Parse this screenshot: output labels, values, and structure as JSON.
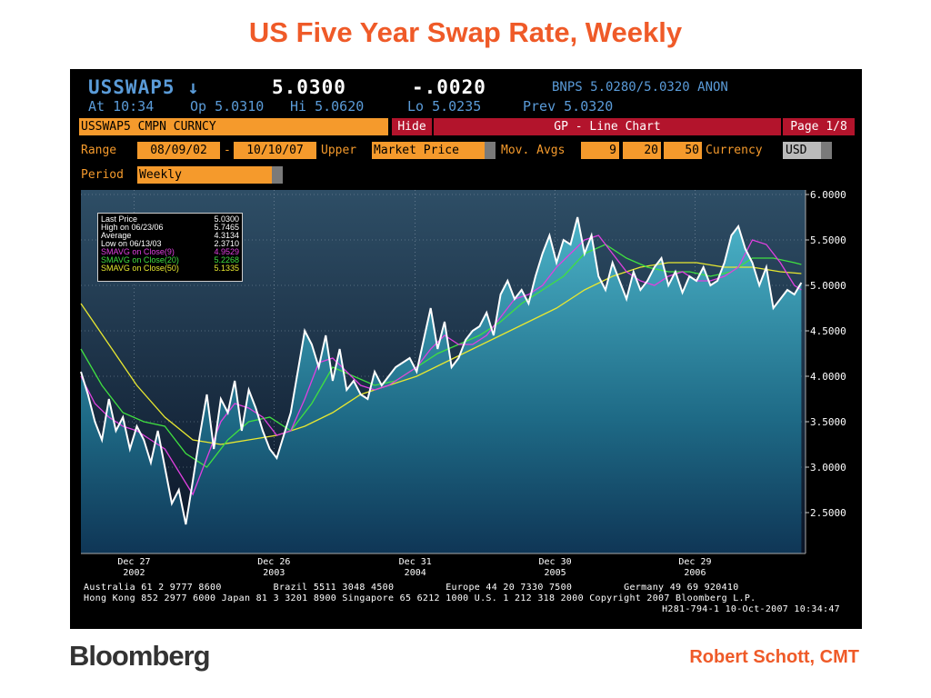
{
  "slide": {
    "title": "US Five Year Swap Rate, Weekly",
    "logo": "Bloomberg",
    "author": "Robert Schott, CMT"
  },
  "terminal": {
    "ticker": "USSWAP5 ↓",
    "last": "5.0300",
    "change": "-.0020",
    "bnps": "BNPS 5.0280/5.0320 ANON",
    "at": "At 10:34",
    "op": "Op 5.0310",
    "hi": "Hi 5.0620",
    "lo": "Lo 5.0235",
    "prev": "Prev 5.0320",
    "security": "USSWAP5 CMPN CURNCY",
    "hide_label": "Hide",
    "chart_mode": "GP - Line Chart",
    "page": "Page 1/8",
    "range_label": "Range",
    "range_from": "08/09/02",
    "range_sep": "-",
    "range_to": "10/10/07",
    "upper_label": "Upper",
    "upper_value": "Market Price",
    "mov_avgs_label": "Mov. Avgs",
    "ma1": "9",
    "ma2": "20",
    "ma3": "50",
    "currency_label": "Currency",
    "currency_value": "USD",
    "period_label": "Period",
    "period_value": "Weekly"
  },
  "legend": [
    {
      "key": "Last Price",
      "value": "5.0300",
      "color": "#ffffff"
    },
    {
      "key": "High on  06/23/06",
      "value": "5.7465",
      "color": "#ffffff"
    },
    {
      "key": "Average",
      "value": "4.3134",
      "color": "#ffffff"
    },
    {
      "key": "Low on  06/13/03",
      "value": "2.3710",
      "color": "#ffffff"
    },
    {
      "key": "SMAVG on Close(9)",
      "value": "4.9529",
      "color": "#e040e0"
    },
    {
      "key": "SMAVG on Close(20)",
      "value": "5.2268",
      "color": "#40e040"
    },
    {
      "key": "SMAVG on Close(50)",
      "value": "5.1335",
      "color": "#e8e830"
    }
  ],
  "footer": {
    "line1": "Australia 61 2 9777 8600         Brazil 5511 3048 4500         Europe 44 20 7330 7500         Germany 49 69 920410",
    "line2": "Hong Kong 852 2977 6000 Japan 81 3 3201 8900 Singapore 65 6212 1000 U.S. 1 212 318 2000 Copyright 2007 Bloomberg L.P.",
    "line3": "H281-794-1 10-Oct-2007 10:34:47"
  },
  "chart_data": {
    "type": "line",
    "ylim": [
      2.05,
      6.05
    ],
    "yticks": [
      "6.0000",
      "5.5000",
      "5.0000",
      "4.5000",
      "4.0000",
      "3.5000",
      "3.0000",
      "2.5000"
    ],
    "ytick_values": [
      6.0,
      5.5,
      5.0,
      4.5,
      4.0,
      3.5,
      3.0,
      2.5
    ],
    "xticks": [
      {
        "day": "Dec 27",
        "year": "2002",
        "t": 2002.98
      },
      {
        "day": "Dec 26",
        "year": "2003",
        "t": 2003.98
      },
      {
        "day": "Dec 31",
        "year": "2004",
        "t": 2004.99
      },
      {
        "day": "Dec 30",
        "year": "2005",
        "t": 2005.99
      },
      {
        "day": "Dec 29",
        "year": "2006",
        "t": 2006.99
      }
    ],
    "xlim": [
      2002.6,
      2007.78
    ],
    "colors": {
      "price": "#ffffff",
      "ma9": "#e040e0",
      "ma20": "#40e040",
      "ma50": "#e8e830"
    },
    "price": {
      "t": [
        2002.6,
        2002.65,
        2002.7,
        2002.75,
        2002.8,
        2002.85,
        2002.9,
        2002.95,
        2003.0,
        2003.05,
        2003.1,
        2003.15,
        2003.2,
        2003.25,
        2003.3,
        2003.35,
        2003.4,
        2003.45,
        2003.5,
        2003.55,
        2003.6,
        2003.65,
        2003.7,
        2003.75,
        2003.8,
        2003.85,
        2003.9,
        2003.95,
        2004.0,
        2004.05,
        2004.1,
        2004.15,
        2004.2,
        2004.25,
        2004.3,
        2004.35,
        2004.4,
        2004.45,
        2004.5,
        2004.55,
        2004.6,
        2004.65,
        2004.7,
        2004.75,
        2004.8,
        2004.85,
        2004.9,
        2004.95,
        2005.0,
        2005.05,
        2005.1,
        2005.15,
        2005.2,
        2005.25,
        2005.3,
        2005.35,
        2005.4,
        2005.45,
        2005.5,
        2005.55,
        2005.6,
        2005.65,
        2005.7,
        2005.75,
        2005.8,
        2005.85,
        2005.9,
        2005.95,
        2006.0,
        2006.05,
        2006.1,
        2006.15,
        2006.2,
        2006.25,
        2006.3,
        2006.35,
        2006.4,
        2006.45,
        2006.5,
        2006.55,
        2006.6,
        2006.65,
        2006.7,
        2006.75,
        2006.8,
        2006.85,
        2006.9,
        2006.95,
        2007.0,
        2007.05,
        2007.1,
        2007.15,
        2007.2,
        2007.25,
        2007.3,
        2007.35,
        2007.4,
        2007.45,
        2007.5,
        2007.55,
        2007.6,
        2007.65,
        2007.7,
        2007.75
      ],
      "v": [
        4.05,
        3.8,
        3.5,
        3.3,
        3.75,
        3.4,
        3.55,
        3.2,
        3.45,
        3.3,
        3.05,
        3.4,
        3.0,
        2.6,
        2.75,
        2.37,
        2.85,
        3.35,
        3.8,
        3.2,
        3.75,
        3.6,
        3.95,
        3.4,
        3.85,
        3.65,
        3.4,
        3.2,
        3.1,
        3.35,
        3.6,
        4.05,
        4.5,
        4.35,
        4.1,
        4.45,
        3.95,
        4.3,
        3.85,
        3.95,
        3.8,
        3.75,
        4.05,
        3.9,
        4.0,
        4.1,
        4.15,
        4.2,
        4.05,
        4.4,
        4.75,
        4.3,
        4.6,
        4.1,
        4.2,
        4.4,
        4.5,
        4.55,
        4.7,
        4.45,
        4.9,
        5.05,
        4.85,
        4.95,
        4.8,
        5.1,
        5.35,
        5.55,
        5.25,
        5.5,
        5.45,
        5.75,
        5.35,
        5.55,
        5.1,
        4.95,
        5.25,
        5.05,
        4.85,
        5.15,
        4.95,
        5.05,
        5.2,
        5.3,
        5.0,
        5.15,
        4.92,
        5.1,
        5.05,
        5.2,
        5.0,
        5.05,
        5.25,
        5.55,
        5.65,
        5.4,
        5.25,
        5.0,
        5.2,
        4.75,
        4.85,
        4.95,
        4.9,
        5.03
      ]
    },
    "ma9": {
      "t": [
        2002.6,
        2002.7,
        2002.8,
        2002.9,
        2003.0,
        2003.1,
        2003.2,
        2003.3,
        2003.4,
        2003.5,
        2003.6,
        2003.7,
        2003.8,
        2003.9,
        2004.0,
        2004.1,
        2004.2,
        2004.3,
        2004.4,
        2004.5,
        2004.6,
        2004.7,
        2004.8,
        2004.9,
        2005.0,
        2005.1,
        2005.2,
        2005.3,
        2005.4,
        2005.5,
        2005.6,
        2005.7,
        2005.8,
        2005.9,
        2006.0,
        2006.1,
        2006.2,
        2006.3,
        2006.4,
        2006.5,
        2006.6,
        2006.7,
        2006.8,
        2006.9,
        2007.0,
        2007.1,
        2007.2,
        2007.3,
        2007.4,
        2007.5,
        2007.6,
        2007.7,
        2007.75
      ],
      "v": [
        4.0,
        3.7,
        3.55,
        3.45,
        3.4,
        3.3,
        3.2,
        2.95,
        2.7,
        3.1,
        3.5,
        3.7,
        3.65,
        3.55,
        3.35,
        3.4,
        3.75,
        4.15,
        4.2,
        4.05,
        3.9,
        3.85,
        3.9,
        4.0,
        4.1,
        4.3,
        4.45,
        4.35,
        4.35,
        4.45,
        4.65,
        4.85,
        4.9,
        5.0,
        5.2,
        5.35,
        5.5,
        5.55,
        5.35,
        5.15,
        5.05,
        5.0,
        5.1,
        5.15,
        5.05,
        5.05,
        5.1,
        5.2,
        5.5,
        5.45,
        5.25,
        5.0,
        4.95
      ]
    },
    "ma20": {
      "t": [
        2002.6,
        2002.75,
        2002.9,
        2003.05,
        2003.2,
        2003.35,
        2003.5,
        2003.65,
        2003.8,
        2003.95,
        2004.1,
        2004.25,
        2004.4,
        2004.55,
        2004.7,
        2004.85,
        2005.0,
        2005.15,
        2005.3,
        2005.45,
        2005.6,
        2005.75,
        2005.9,
        2006.05,
        2006.2,
        2006.35,
        2006.5,
        2006.65,
        2006.8,
        2006.95,
        2007.1,
        2007.25,
        2007.4,
        2007.55,
        2007.7,
        2007.75
      ],
      "v": [
        4.3,
        3.9,
        3.6,
        3.5,
        3.45,
        3.15,
        3.0,
        3.3,
        3.5,
        3.55,
        3.4,
        3.7,
        4.1,
        4.0,
        3.9,
        3.95,
        4.1,
        4.25,
        4.35,
        4.45,
        4.6,
        4.8,
        4.95,
        5.1,
        5.35,
        5.45,
        5.3,
        5.2,
        5.15,
        5.15,
        5.1,
        5.15,
        5.3,
        5.3,
        5.25,
        5.23
      ]
    },
    "ma50": {
      "t": [
        2002.6,
        2002.8,
        2003.0,
        2003.2,
        2003.4,
        2003.6,
        2003.8,
        2004.0,
        2004.2,
        2004.4,
        2004.6,
        2004.8,
        2005.0,
        2005.2,
        2005.4,
        2005.6,
        2005.8,
        2006.0,
        2006.2,
        2006.4,
        2006.6,
        2006.8,
        2007.0,
        2007.2,
        2007.4,
        2007.6,
        2007.75
      ],
      "v": [
        4.8,
        4.35,
        3.9,
        3.55,
        3.3,
        3.25,
        3.3,
        3.35,
        3.45,
        3.6,
        3.8,
        3.9,
        4.0,
        4.15,
        4.3,
        4.45,
        4.6,
        4.75,
        4.95,
        5.1,
        5.2,
        5.25,
        5.25,
        5.2,
        5.2,
        5.15,
        5.13
      ]
    }
  }
}
